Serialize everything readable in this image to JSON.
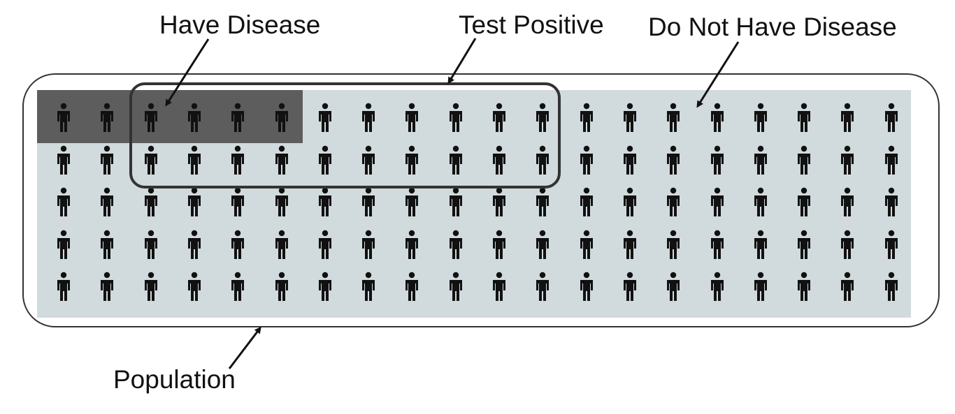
{
  "labels": {
    "have_disease": "Have Disease",
    "test_positive": "Test Positive",
    "do_not_have_disease": "Do Not Have Disease",
    "population": "Population"
  },
  "grid": {
    "columns": 20,
    "rows": 5,
    "total_people": 100,
    "have_disease_count": 6,
    "test_positive_count": 20,
    "have_disease_region": {
      "rows": [
        1
      ],
      "columns": [
        1,
        6
      ]
    },
    "test_positive_region": {
      "rows": [
        1,
        2
      ],
      "columns": [
        3,
        12
      ]
    }
  },
  "colors": {
    "population_fill": "#d1dadd",
    "have_disease_fill": "#5d5d5d",
    "outline": "#333333",
    "person": "#111111",
    "arrow": "#111111"
  },
  "icons": {
    "person": "person-icon",
    "arrow": "arrow-icon"
  }
}
